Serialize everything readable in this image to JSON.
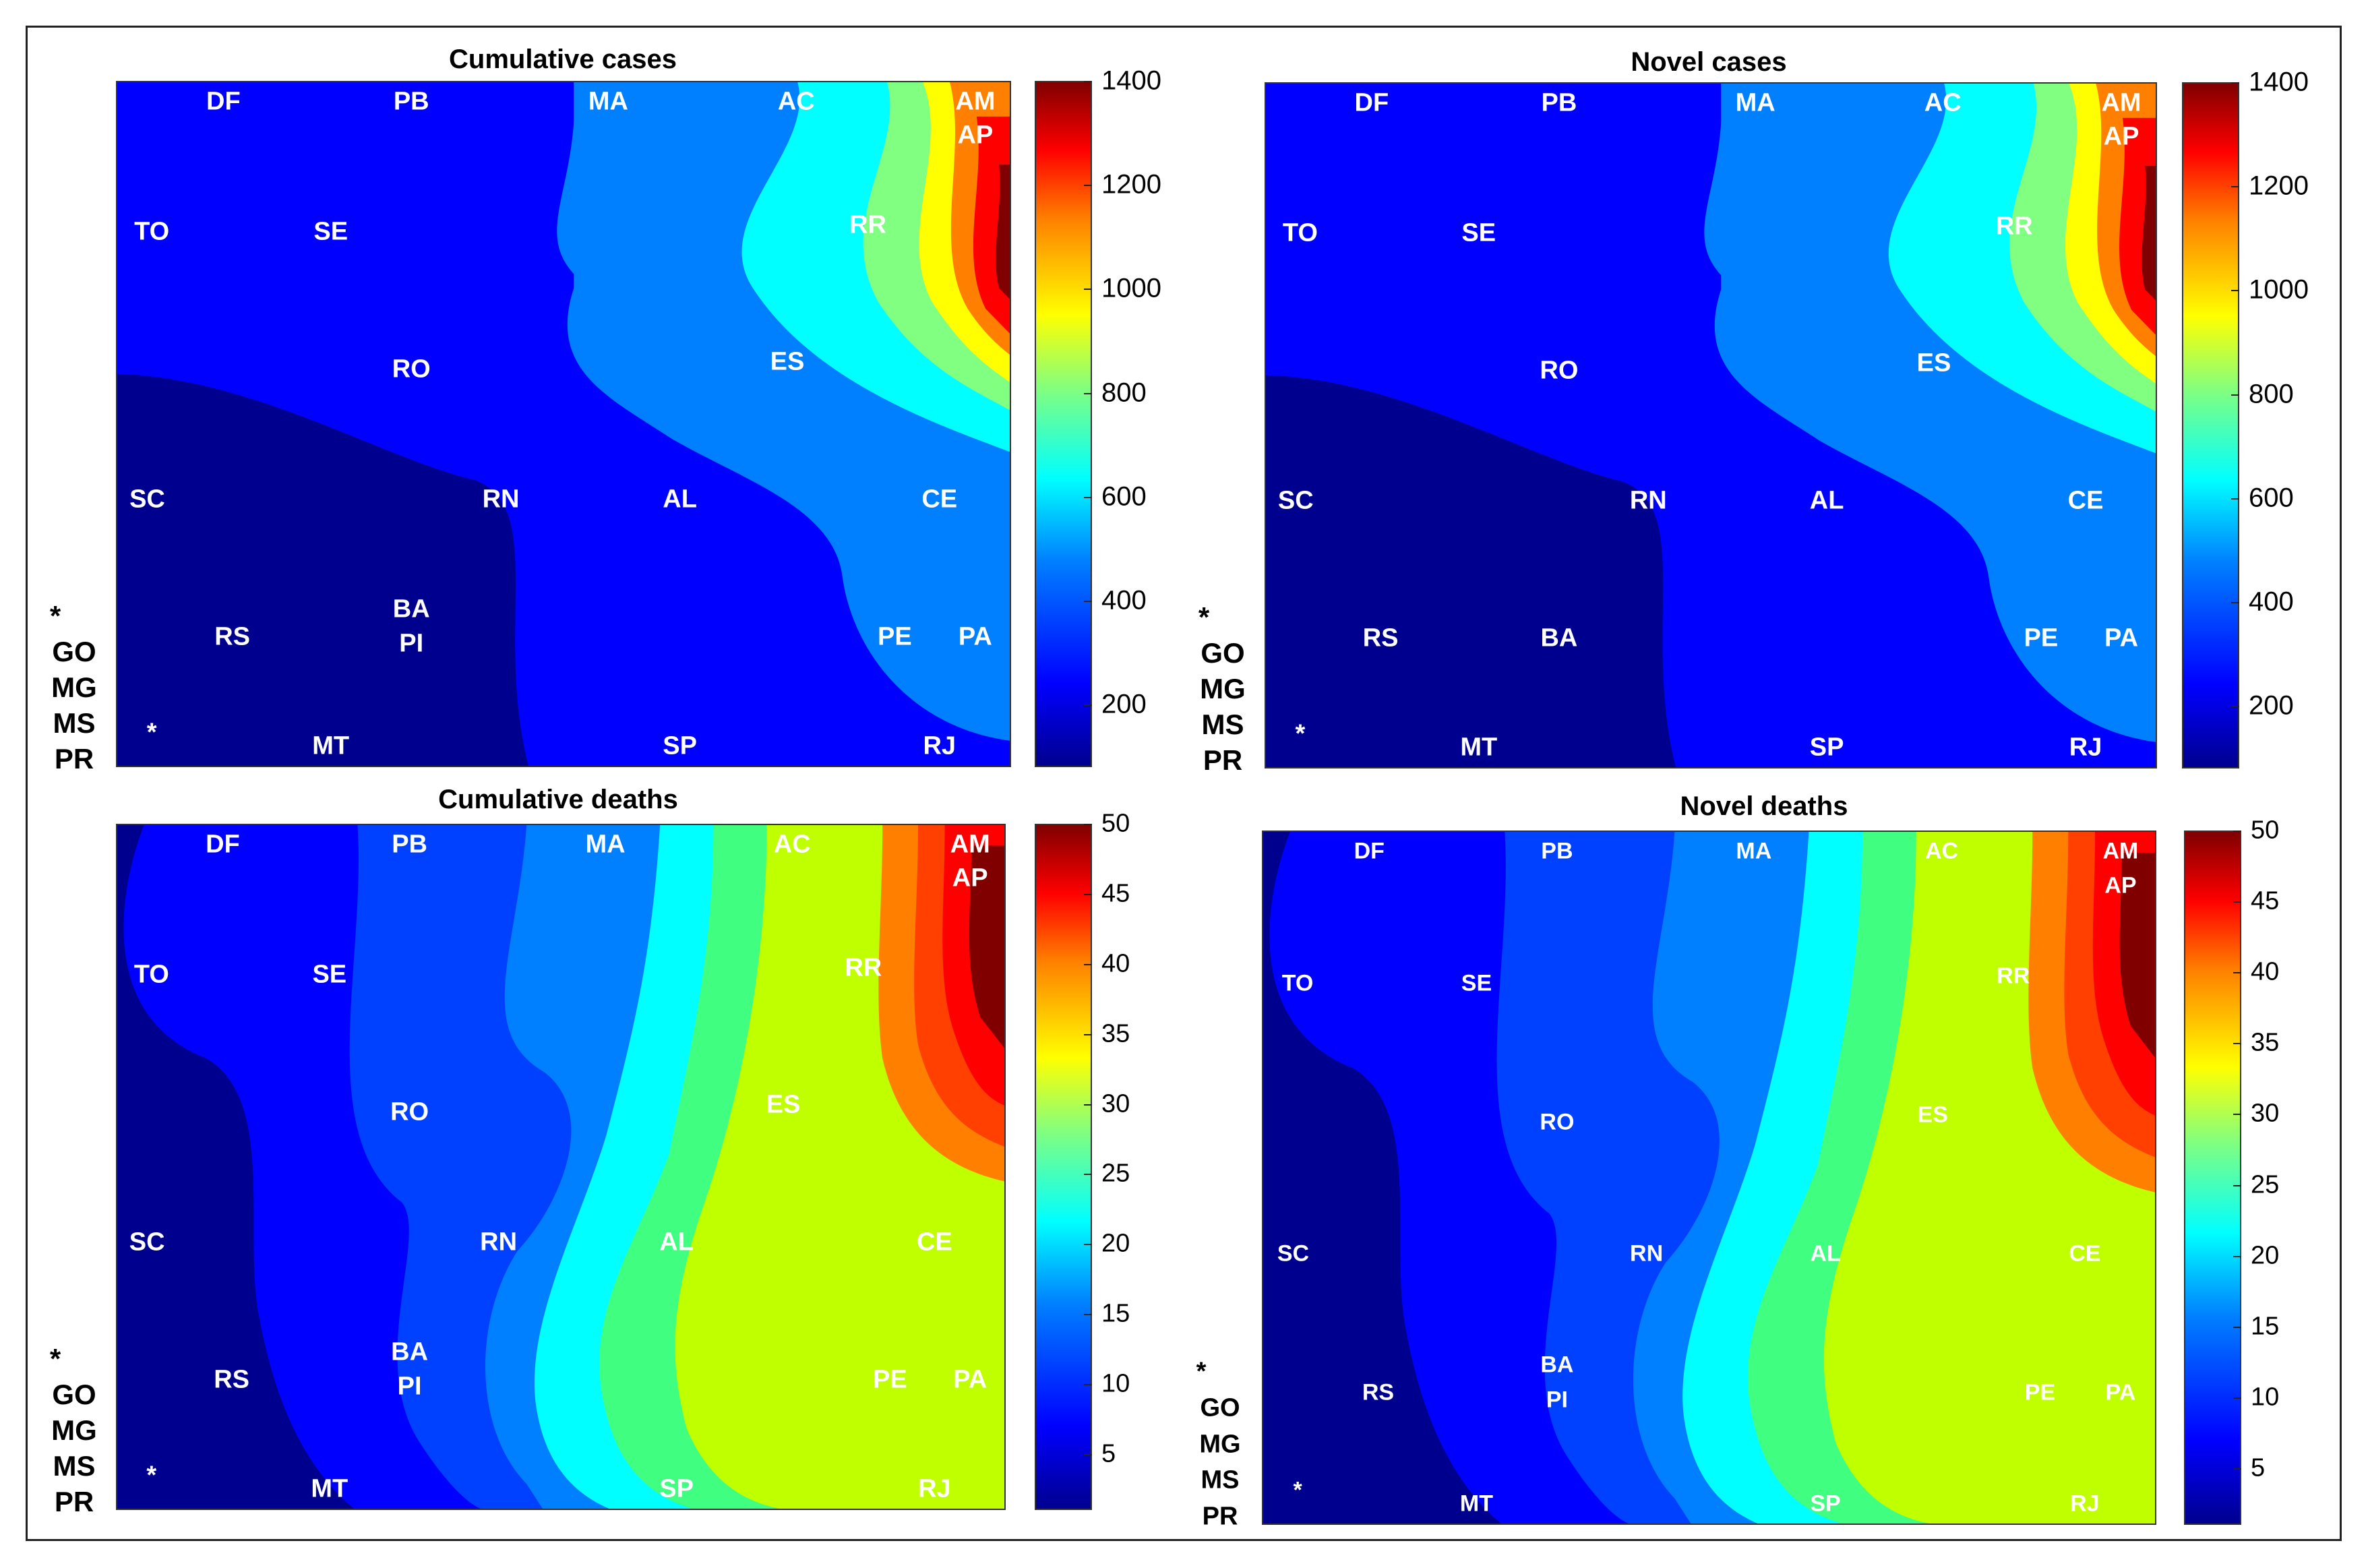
{
  "colorscale": [
    "#00008f",
    "#0000ff",
    "#0080ff",
    "#00ffff",
    "#80ff80",
    "#ffff00",
    "#ff8000",
    "#ff0000",
    "#800000"
  ],
  "chart_data": [
    {
      "type": "heatmap",
      "title": "Cumulative cases",
      "colorbar": {
        "range": [
          80,
          1400
        ],
        "ticks": [
          "200",
          "400",
          "600",
          "800",
          "1000",
          "1200",
          "1400"
        ]
      },
      "state_labels": [
        "DF",
        "PB",
        "MA",
        "AC",
        "AM",
        "AP",
        "TO",
        "SE",
        "RR",
        "RO",
        "ES",
        "SC",
        "RN",
        "AL",
        "CE",
        "RS",
        "BA",
        "PI",
        "PE",
        "PA",
        "MT",
        "SP",
        "RJ",
        "*"
      ],
      "side_labels": [
        "*",
        "GO",
        "MG",
        "MS",
        "PR"
      ]
    },
    {
      "type": "heatmap",
      "title": "Novel cases",
      "colorbar": {
        "range": [
          80,
          1400
        ],
        "ticks": [
          "200",
          "400",
          "600",
          "800",
          "1000",
          "1200",
          "1400"
        ]
      },
      "state_labels": [
        "DF",
        "PB",
        "MA",
        "AC",
        "AM",
        "AP",
        "TO",
        "SE",
        "RR",
        "RO",
        "ES",
        "SC",
        "RN",
        "AL",
        "CE",
        "RS",
        "BA",
        "PE",
        "PA",
        "MT",
        "SP",
        "RJ",
        "*"
      ],
      "side_labels": [
        "*",
        "GO",
        "MG",
        "MS",
        "PR"
      ]
    },
    {
      "type": "heatmap",
      "title": "Cumulative deaths",
      "colorbar": {
        "range": [
          1,
          50
        ],
        "ticks": [
          "5",
          "10",
          "15",
          "20",
          "25",
          "30",
          "35",
          "40",
          "45",
          "50"
        ]
      },
      "state_labels": [
        "DF",
        "PB",
        "MA",
        "AC",
        "AM",
        "AP",
        "TO",
        "SE",
        "RR",
        "RO",
        "ES",
        "SC",
        "RN",
        "AL",
        "CE",
        "RS",
        "BA",
        "PI",
        "PE",
        "PA",
        "MT",
        "SP",
        "RJ",
        "*"
      ],
      "side_labels": [
        "*",
        "GO",
        "MG",
        "MS",
        "PR"
      ]
    },
    {
      "type": "heatmap",
      "title": "Novel deaths",
      "colorbar": {
        "range": [
          1,
          50
        ],
        "ticks": [
          "5",
          "10",
          "15",
          "20",
          "25",
          "30",
          "35",
          "40",
          "45",
          "50"
        ]
      },
      "state_labels": [
        "DF",
        "PB",
        "MA",
        "AC",
        "AM",
        "AP",
        "TO",
        "SE",
        "RR",
        "RO",
        "ES",
        "SC",
        "RN",
        "AL",
        "CE",
        "RS",
        "BA",
        "PI",
        "PE",
        "PA",
        "MT",
        "SP",
        "RJ",
        "*"
      ],
      "side_labels": [
        "*",
        "GO",
        "MG",
        "MS",
        "PR"
      ]
    }
  ]
}
